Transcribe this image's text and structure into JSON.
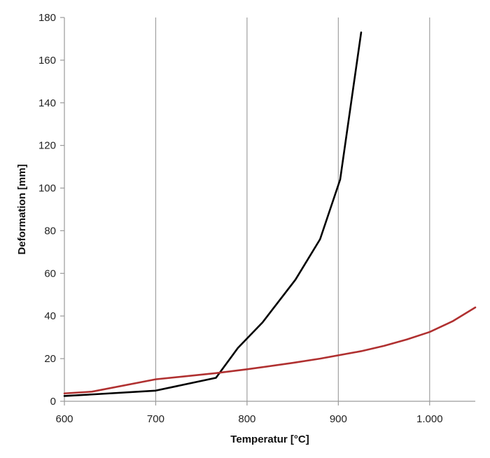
{
  "chart_data": {
    "type": "line",
    "xlabel": "Temperatur [°C]",
    "ylabel": "Deformation [mm]",
    "xlim": [
      600,
      1050
    ],
    "ylim": [
      0,
      180
    ],
    "x_ticks": [
      600,
      700,
      800,
      900,
      1000
    ],
    "x_tick_labels": [
      "600",
      "700",
      "800",
      "900",
      "1.000"
    ],
    "y_ticks": [
      0,
      20,
      40,
      60,
      80,
      100,
      120,
      140,
      160,
      180
    ],
    "y_tick_labels": [
      "0",
      "20",
      "40",
      "60",
      "80",
      "100",
      "120",
      "140",
      "160",
      "180"
    ],
    "grid": {
      "vertical": true,
      "horizontal": false
    },
    "legend": "none",
    "series": [
      {
        "color": "#000000",
        "points": [
          [
            600,
            2.5
          ],
          [
            630,
            3.2
          ],
          [
            700,
            5
          ],
          [
            766,
            11
          ],
          [
            790,
            25
          ],
          [
            817,
            37
          ],
          [
            853,
            57
          ],
          [
            880,
            76
          ],
          [
            902,
            104
          ],
          [
            925,
            173
          ]
        ]
      },
      {
        "color": "#b03030",
        "points": [
          [
            600,
            3.7
          ],
          [
            630,
            4.5
          ],
          [
            700,
            10.3
          ],
          [
            766,
            13.2
          ],
          [
            800,
            15
          ],
          [
            850,
            18
          ],
          [
            880,
            20
          ],
          [
            925,
            23.5
          ],
          [
            950,
            26
          ],
          [
            975,
            29
          ],
          [
            1000,
            32.5
          ],
          [
            1025,
            37.5
          ],
          [
            1050,
            44
          ]
        ]
      }
    ]
  }
}
